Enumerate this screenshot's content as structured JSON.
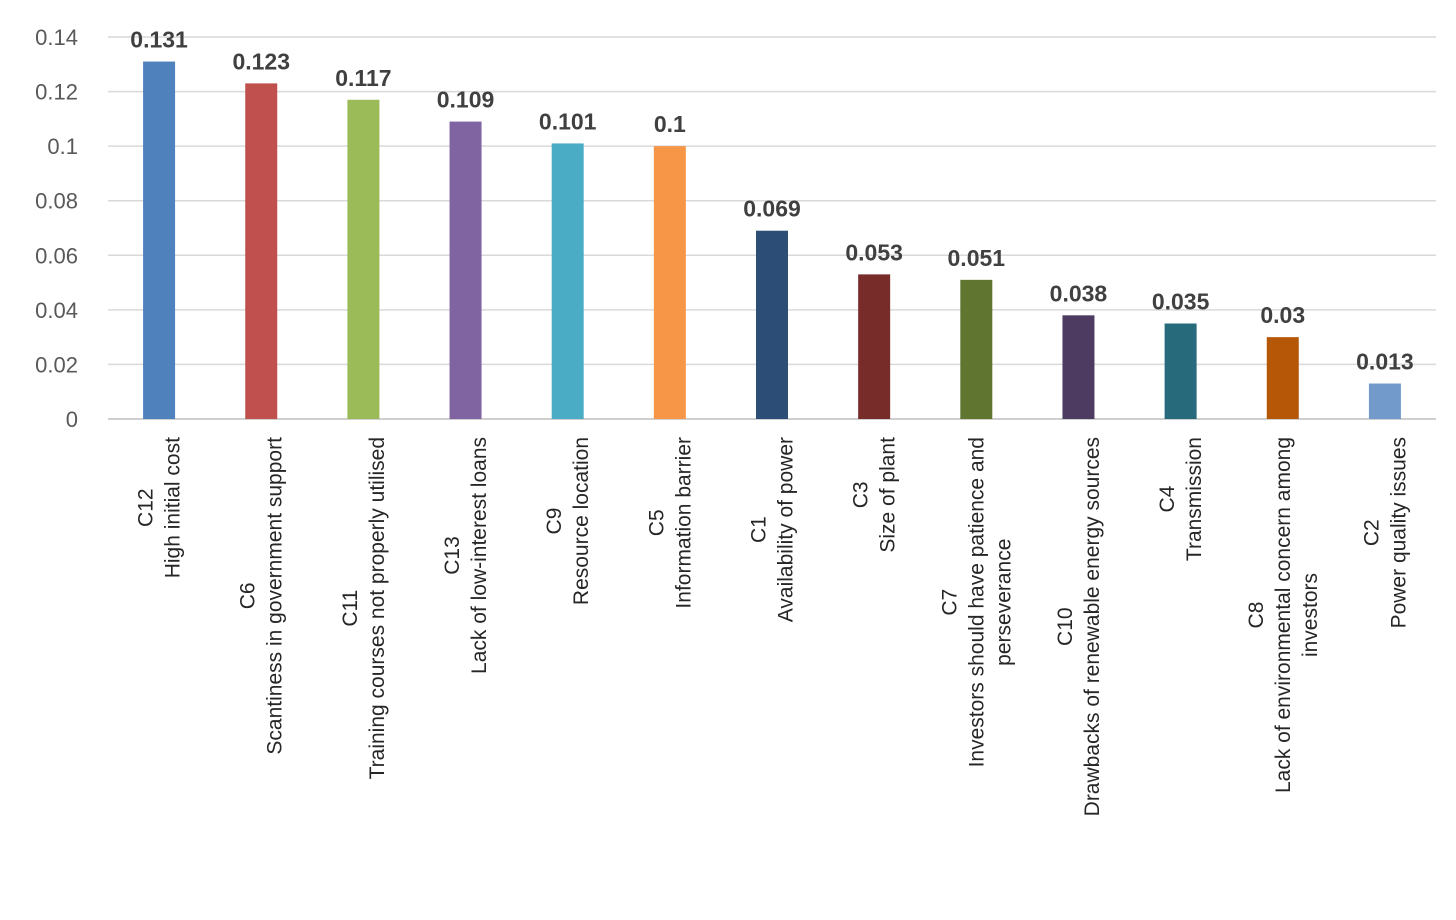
{
  "chart_data": {
    "type": "bar",
    "title": "",
    "xlabel": "",
    "ylabel": "",
    "ylim": [
      0,
      0.14
    ],
    "yticks": [
      "0",
      "0.02",
      "0.04",
      "0.06",
      "0.08",
      "0.1",
      "0.12",
      "0.14"
    ],
    "ytick_values": [
      0,
      0.02,
      0.04,
      0.06,
      0.08,
      0.1,
      0.12,
      0.14
    ],
    "grid": true,
    "categories": [
      {
        "code": "C12",
        "name": "High initial cost",
        "lines": [
          "C12",
          "High initial cost"
        ],
        "value": 0.131,
        "label": "0.131",
        "color": "#4f81bd"
      },
      {
        "code": "C6",
        "name": "Scantiness in government support",
        "lines": [
          "C6",
          "Scantiness in government support"
        ],
        "value": 0.123,
        "label": "0.123",
        "color": "#c0504d"
      },
      {
        "code": "C11",
        "name": "Training courses not properly utilised",
        "lines": [
          "C11",
          "Training courses not properly utilised"
        ],
        "value": 0.117,
        "label": "0.117",
        "color": "#9bbb59"
      },
      {
        "code": "C13",
        "name": "Lack of low-interest loans",
        "lines": [
          "C13",
          "Lack of low-interest loans"
        ],
        "value": 0.109,
        "label": "0.109",
        "color": "#8064a2"
      },
      {
        "code": "C9",
        "name": "Resource location",
        "lines": [
          "C9",
          "Resource location"
        ],
        "value": 0.101,
        "label": "0.101",
        "color": "#4bacc6"
      },
      {
        "code": "C5",
        "name": "Information barrier",
        "lines": [
          "C5",
          "Information barrier"
        ],
        "value": 0.1,
        "label": "0.1",
        "color": "#f79646"
      },
      {
        "code": "C1",
        "name": "Availability of power",
        "lines": [
          "C1",
          "Availability of power"
        ],
        "value": 0.069,
        "label": "0.069",
        "color": "#2c4d75"
      },
      {
        "code": "C3",
        "name": "Size of plant",
        "lines": [
          "C3",
          "Size of plant"
        ],
        "value": 0.053,
        "label": "0.053",
        "color": "#772c2a"
      },
      {
        "code": "C7",
        "name": "Investors should have patience and perseverance",
        "lines": [
          "C7",
          "Investors should have patience and",
          "perseverance"
        ],
        "value": 0.051,
        "label": "0.051",
        "color": "#5f7530"
      },
      {
        "code": "C10",
        "name": "Drawbacks of renewable energy sources",
        "lines": [
          "C10",
          "Drawbacks of renewable energy sources"
        ],
        "value": 0.038,
        "label": "0.038",
        "color": "#4d3b62"
      },
      {
        "code": "C4",
        "name": "Transmission",
        "lines": [
          "C4",
          "Transmission"
        ],
        "value": 0.035,
        "label": "0.035",
        "color": "#276a7c"
      },
      {
        "code": "C8",
        "name": "Lack of environmental concern among investors",
        "lines": [
          "C8",
          "Lack of environmental concern among",
          "investors"
        ],
        "value": 0.03,
        "label": "0.03",
        "color": "#b65708"
      },
      {
        "code": "C2",
        "name": "Power quality issues",
        "lines": [
          "C2",
          "Power quality issues"
        ],
        "value": 0.013,
        "label": "0.013",
        "color": "#729aca"
      }
    ]
  }
}
